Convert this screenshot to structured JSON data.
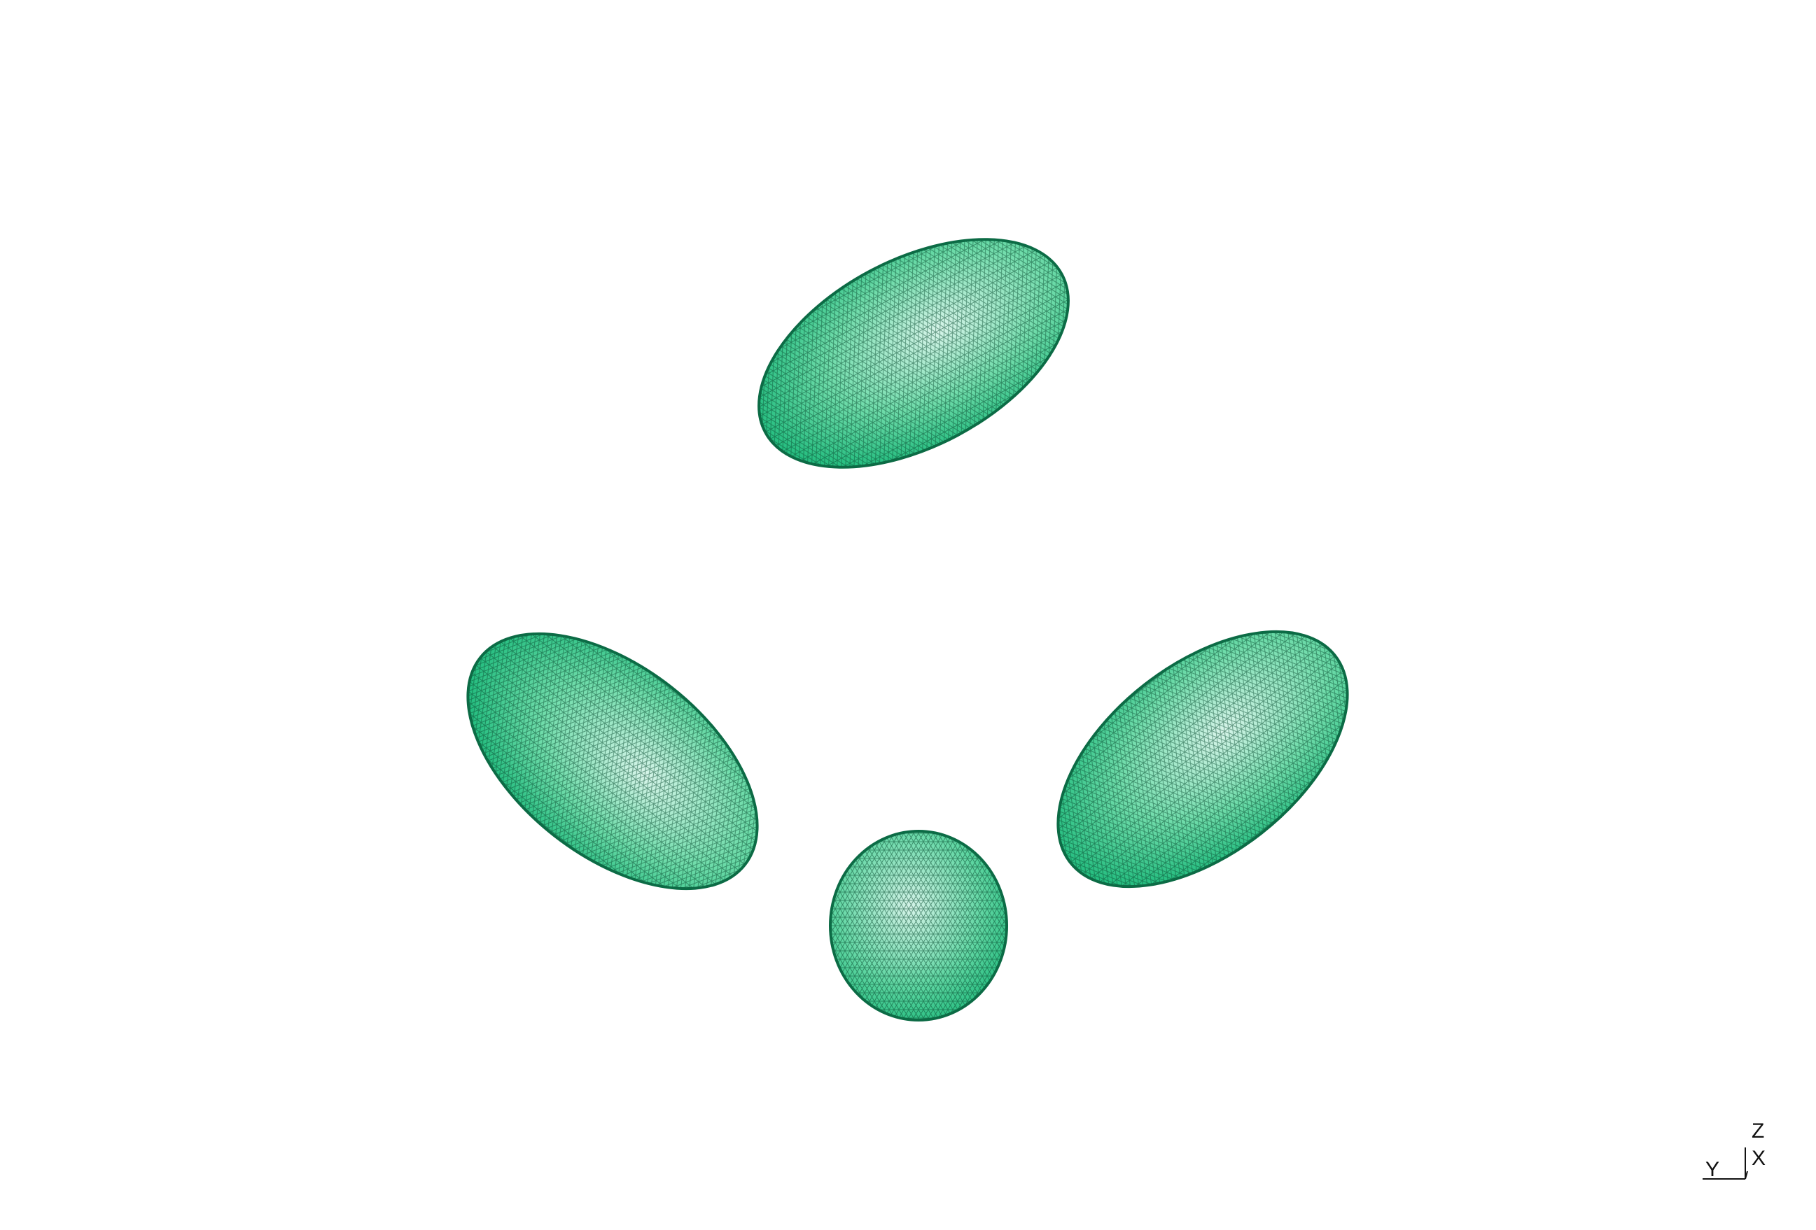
{
  "viewport": {
    "background": "#ffffff"
  },
  "meshes": [
    {
      "id": "ellipsoid-top",
      "shape": "ellipsoid",
      "color": "#1fd08a",
      "rim": "#0c6b45"
    },
    {
      "id": "ellipsoid-left",
      "shape": "ellipsoid",
      "color": "#1fd08a",
      "rim": "#0c6b45"
    },
    {
      "id": "ellipsoid-right",
      "shape": "ellipsoid",
      "color": "#1fd08a",
      "rim": "#0c6b45"
    },
    {
      "id": "sphere-bottom",
      "shape": "sphere",
      "color": "#1fd08a",
      "rim": "#0c6b45"
    }
  ],
  "orientation_axes": {
    "z_label": "Z",
    "x_label": "X",
    "y_label": "Y"
  }
}
